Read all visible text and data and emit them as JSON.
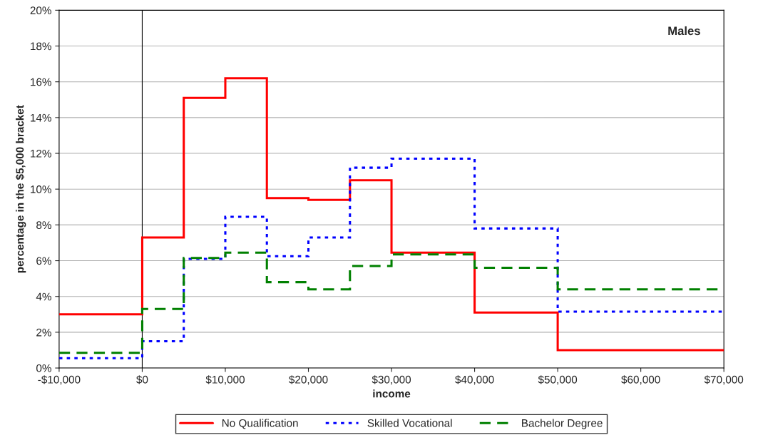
{
  "chart_data": {
    "type": "histogram",
    "xlabel": "income",
    "ylabel": "percentage in the $5,000 bracket",
    "annotations": [
      "Males"
    ],
    "bins": [
      -10000,
      0,
      5000,
      10000,
      15000,
      20000,
      25000,
      30000,
      40000,
      50000,
      70000
    ],
    "series": [
      {
        "name": "No Qualification",
        "color": "#ff0000",
        "line_style": "solid",
        "values": [
          3.0,
          7.3,
          15.1,
          16.2,
          9.5,
          9.4,
          10.5,
          6.45,
          3.1,
          1.0
        ]
      },
      {
        "name": "Skilled Vocational",
        "color": "#0000ff",
        "line_style": "dotted",
        "values": [
          0.55,
          1.5,
          6.1,
          8.45,
          6.25,
          7.3,
          11.2,
          11.7,
          7.8,
          3.15
        ]
      },
      {
        "name": "Bachelor Degree",
        "color": "#008000",
        "line_style": "dashed",
        "values": [
          0.85,
          3.3,
          6.15,
          6.45,
          4.8,
          4.4,
          5.7,
          6.35,
          5.6,
          4.4
        ]
      }
    ],
    "xlim": [
      -10000,
      70000
    ],
    "xticks": [
      {
        "value": -10000,
        "label": "-$10,000"
      },
      {
        "value": 0,
        "label": "$0"
      },
      {
        "value": 10000,
        "label": "$10,000"
      },
      {
        "value": 20000,
        "label": "$20,000"
      },
      {
        "value": 30000,
        "label": "$30,000"
      },
      {
        "value": 40000,
        "label": "$40,000"
      },
      {
        "value": 50000,
        "label": "$50,000"
      },
      {
        "value": 60000,
        "label": "$60,000"
      },
      {
        "value": 70000,
        "label": "$70,000"
      }
    ],
    "ylim": [
      0,
      20
    ],
    "yticks": [
      {
        "value": 0,
        "label": "0%"
      },
      {
        "value": 2,
        "label": "2%"
      },
      {
        "value": 4,
        "label": "4%"
      },
      {
        "value": 6,
        "label": "6%"
      },
      {
        "value": 8,
        "label": "8%"
      },
      {
        "value": 10,
        "label": "10%"
      },
      {
        "value": 12,
        "label": "12%"
      },
      {
        "value": 14,
        "label": "14%"
      },
      {
        "value": 16,
        "label": "16%"
      },
      {
        "value": 18,
        "label": "18%"
      },
      {
        "value": 20,
        "label": "20%"
      }
    ],
    "ref_lines": [
      {
        "axis": "x",
        "value": 0,
        "color": "#000000"
      }
    ],
    "grid": "y",
    "legend": "bottom"
  }
}
